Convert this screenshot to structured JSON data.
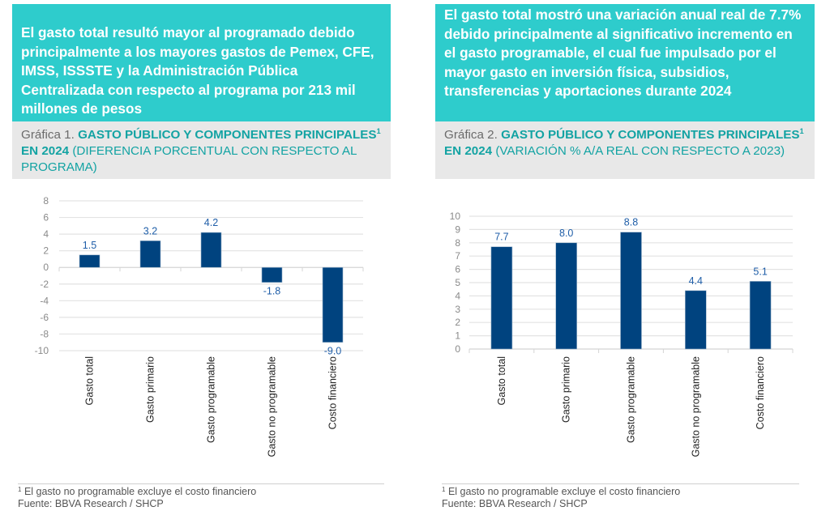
{
  "colors": {
    "headline_bg": "#2ecccc",
    "caption_bg": "#e8e8e8",
    "accent_text": "#13a3a3",
    "bar": "#00437f",
    "value_label": "#1f5ea8",
    "grid": "#e3e3e3"
  },
  "left": {
    "headline": "El gasto total resultó mayor al programado debido principalmente a los mayores gastos de Pemex, CFE, IMSS, ISSSTE y la Administración Pública Centralizada con respecto al programa por 213 mil millones de pesos",
    "caption": {
      "prefix": "Gráfica 1. ",
      "title": "GASTO PÚBLICO Y COMPONENTES PRINCIPALES",
      "sup": "1",
      "title_end": " EN 2024",
      "subtitle": " (DIFERENCIA PORCENTUAL CON RESPECTO AL PROGRAMA)"
    },
    "footnote": "El gasto no programable excluye el costo financiero",
    "footnote_mark": "1",
    "source": "Fuente: BBVA Research / SHCP"
  },
  "right": {
    "headline": "El gasto total mostró una variación anual real de 7.7% debido principalmente al significativo incremento en el gasto programable, el cual fue impulsado por el mayor gasto en inversión física, subsidios, transferencias y aportaciones durante 2024",
    "caption": {
      "prefix": "Gráfica 2. ",
      "title": "GASTO PÚBLICO Y COMPONENTES PRINCIPALES",
      "sup": "1",
      "title_end": " EN 2024 ",
      "subtitle": " (VARIACIÓN % A/A REAL CON RESPECTO A 2023)"
    },
    "footnote": "El gasto no programable excluye el costo financiero",
    "footnote_mark": "1",
    "source": "Fuente: BBVA Research / SHCP"
  },
  "chart_data": [
    {
      "type": "bar",
      "title": "Gráfica 1. GASTO PÚBLICO Y COMPONENTES PRINCIPALES EN 2024 (DIFERENCIA PORCENTUAL CON RESPECTO AL PROGRAMA)",
      "categories": [
        "Gasto total",
        "Gasto primario",
        "Gasto programable",
        "Gasto no programable",
        "Costo financiero"
      ],
      "values": [
        1.5,
        3.2,
        4.2,
        -1.8,
        -9.0
      ],
      "value_labels": [
        "1.5",
        "3.2",
        "4.2",
        "-1.8",
        "-9.0"
      ],
      "xlabel": "",
      "ylabel": "",
      "ylim": [
        -10,
        8
      ],
      "yticks": [
        8,
        6,
        4,
        2,
        0,
        -2,
        -4,
        -6,
        -8,
        -10
      ],
      "grid": true,
      "legend": "none"
    },
    {
      "type": "bar",
      "title": "Gráfica 2. GASTO PÚBLICO Y COMPONENTES PRINCIPALES EN 2024 (VARIACIÓN % A/A REAL CON RESPECTO A 2023)",
      "categories": [
        "Gasto total",
        "Gasto primario",
        "Gasto programable",
        "Gasto no programable",
        "Costo financiero"
      ],
      "values": [
        7.7,
        8.0,
        8.8,
        4.4,
        5.1
      ],
      "value_labels": [
        "7.7",
        "8.0",
        "8.8",
        "4.4",
        "5.1"
      ],
      "xlabel": "",
      "ylabel": "",
      "ylim": [
        0,
        10
      ],
      "yticks": [
        10,
        9,
        8,
        7,
        6,
        5,
        4,
        3,
        2,
        1,
        0
      ],
      "grid": true,
      "legend": "none"
    }
  ]
}
